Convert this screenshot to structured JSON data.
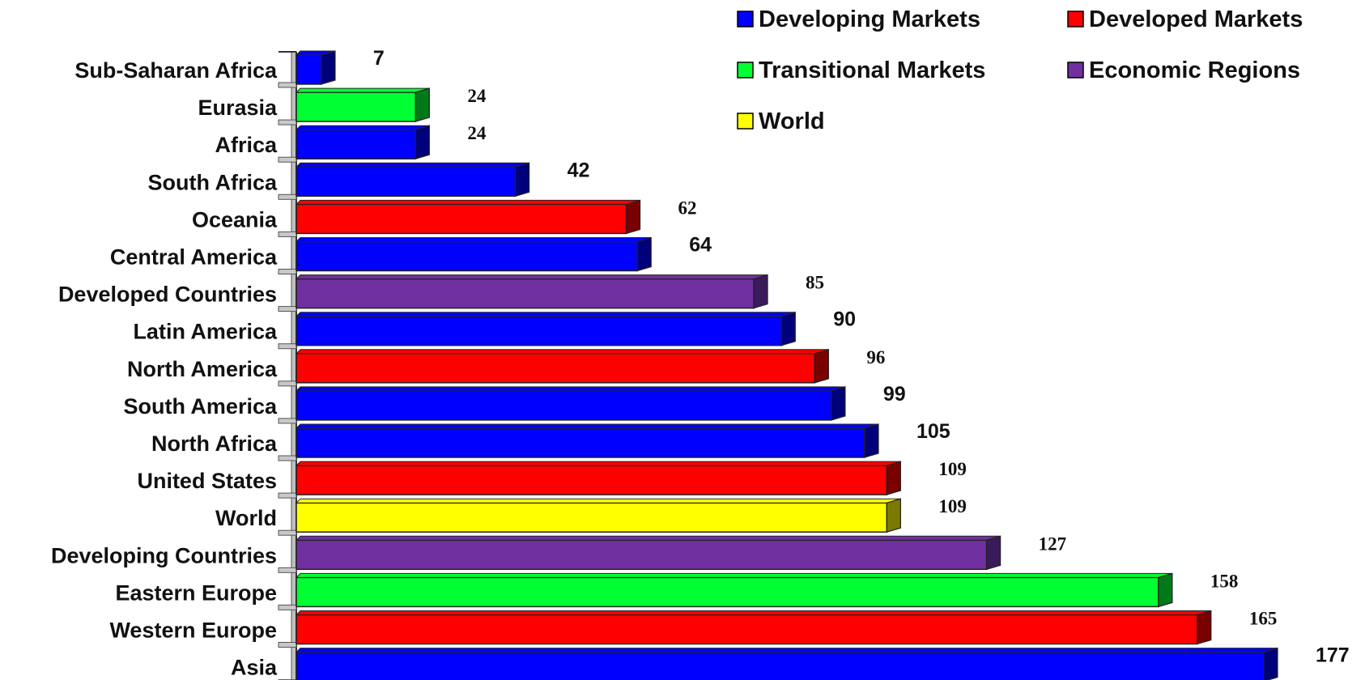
{
  "chart_data": {
    "type": "bar",
    "orientation": "horizontal",
    "xlim": [
      0,
      177
    ],
    "grid": false,
    "legend_position": "top-right",
    "categories": [
      {
        "label": "Sub-Saharan Africa",
        "value": 7,
        "value_label": "7",
        "group": "Developing Markets"
      },
      {
        "label": "Eurasia",
        "value": 24,
        "value_label": "24",
        "group": "Transitional Markets"
      },
      {
        "label": "Africa",
        "value": 24,
        "value_label": "24",
        "group": "Developing Markets"
      },
      {
        "label": "South Africa",
        "value": 42,
        "value_label": "42",
        "group": "Developing Markets"
      },
      {
        "label": "Oceania",
        "value": 62,
        "value_label": "62",
        "group": "Developed Markets"
      },
      {
        "label": "Central America",
        "value": 64,
        "value_label": "64",
        "group": "Developing Markets"
      },
      {
        "label": "Developed Countries",
        "value": 85,
        "value_label": "85",
        "group": "Economic Regions"
      },
      {
        "label": "Latin America",
        "value": 90,
        "value_label": "90",
        "group": "Developing Markets"
      },
      {
        "label": "North America",
        "value": 96,
        "value_label": "96",
        "group": "Developed Markets"
      },
      {
        "label": "South America",
        "value": 99,
        "value_label": "99",
        "group": "Developing Markets"
      },
      {
        "label": "North Africa",
        "value": 105,
        "value_label": "105",
        "group": "Developing Markets"
      },
      {
        "label": "United States",
        "value": 109,
        "value_label": "109",
        "group": "Developed Markets"
      },
      {
        "label": "World",
        "value": 109,
        "value_label": "109",
        "group": "World"
      },
      {
        "label": "Developing Countries",
        "value": 127,
        "value_label": "127",
        "group": "Economic Regions"
      },
      {
        "label": "Eastern Europe",
        "value": 158,
        "value_label": "158",
        "group": "Transitional Markets"
      },
      {
        "label": "Western Europe",
        "value": 165,
        "value_label": "165",
        "group": "Developed Markets"
      },
      {
        "label": "Asia",
        "value": 177,
        "value_label": "177",
        "group": "Developing Markets"
      }
    ],
    "legend": [
      {
        "name": "Developing Markets",
        "color": "#0000ff",
        "shade": "#00007a"
      },
      {
        "name": "Developed Markets",
        "color": "#ff0000",
        "shade": "#7a0000"
      },
      {
        "name": "Transitional Markets",
        "color": "#00ff33",
        "shade": "#007a18"
      },
      {
        "name": "Economic Regions",
        "color": "#7030a0",
        "shade": "#3a1a5a"
      },
      {
        "name": "World",
        "color": "#ffff00",
        "shade": "#7a7a00"
      }
    ]
  }
}
